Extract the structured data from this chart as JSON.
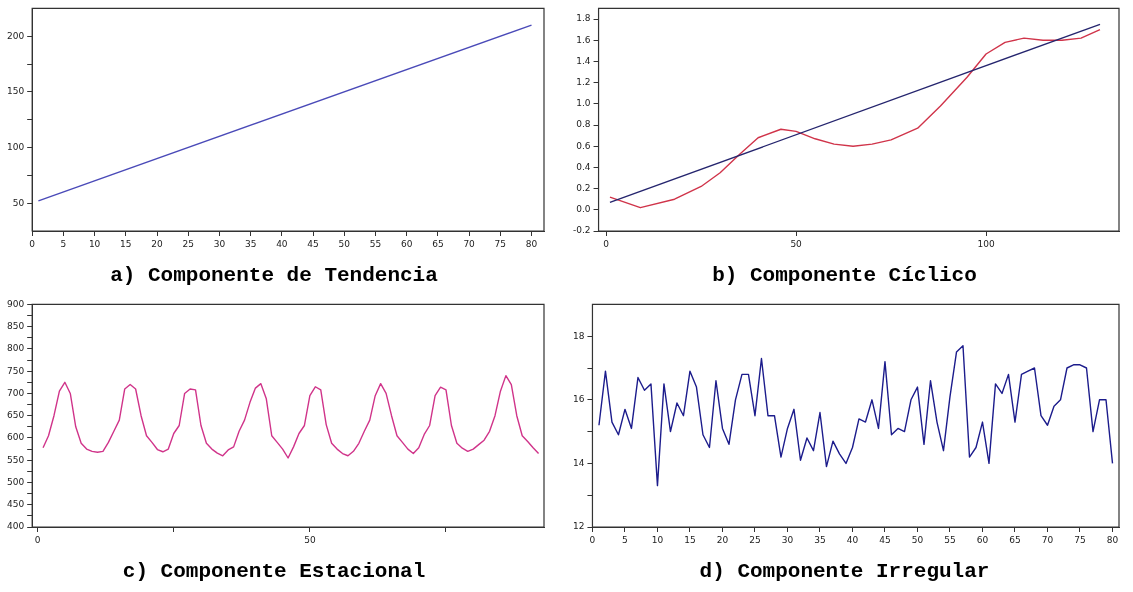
{
  "chart_data": [
    {
      "type": "line",
      "title": "a) Componente de Tendencia",
      "x": [
        1,
        80
      ],
      "xlim": [
        0,
        82
      ],
      "ylim": [
        25,
        225
      ],
      "xticks": [
        0,
        5,
        10,
        15,
        20,
        25,
        30,
        35,
        40,
        45,
        50,
        55,
        60,
        65,
        70,
        75,
        80
      ],
      "yticks": [
        50,
        {
          "value": 75,
          "label": null
        },
        100,
        {
          "value": 125,
          "label": null
        },
        150,
        {
          "value": 175,
          "label": null
        },
        200
      ],
      "series": [
        {
          "color": "#4a4ab8",
          "values": [
            52,
            210
          ]
        }
      ]
    },
    {
      "type": "line",
      "title": "b) Componente Cíclico",
      "xlim": [
        -2,
        135
      ],
      "ylim": [
        -0.2,
        1.9
      ],
      "xticks": [
        0,
        50,
        100
      ],
      "yticks": [
        {
          "value": -0.2,
          "label": "-0.2"
        },
        {
          "value": 0,
          "label": "0.0"
        },
        0.2,
        0.4,
        0.6,
        0.8,
        {
          "value": 1,
          "label": "1.0"
        },
        1.2,
        1.4,
        1.6,
        1.8
      ],
      "series": [
        {
          "color": "#25256e",
          "x": [
            1,
            130
          ],
          "values": [
            0.07,
            1.75
          ]
        },
        {
          "color": "#d0344a",
          "x": [
            1,
            9,
            18,
            25,
            30,
            35,
            40,
            46,
            50,
            55,
            60,
            65,
            70,
            75,
            82,
            88,
            95,
            100,
            105,
            110,
            115,
            120,
            125,
            130
          ],
          "values": [
            0.12,
            0.02,
            0.1,
            0.22,
            0.35,
            0.52,
            0.68,
            0.76,
            0.74,
            0.67,
            0.62,
            0.6,
            0.62,
            0.66,
            0.77,
            0.98,
            1.25,
            1.47,
            1.58,
            1.62,
            1.6,
            1.6,
            1.62,
            1.7
          ]
        }
      ]
    },
    {
      "type": "line",
      "title": "c) Componente Estacional",
      "xlim": [
        -1,
        93
      ],
      "ylim": [
        400,
        900
      ],
      "x": [
        1,
        2,
        3,
        4,
        5,
        6,
        7,
        8,
        9,
        10,
        11,
        12,
        13,
        14,
        15,
        16,
        17,
        18,
        19,
        20,
        21,
        22,
        23,
        24,
        25,
        26,
        27,
        28,
        29,
        30,
        31,
        32,
        33,
        34,
        35,
        36,
        37,
        38,
        39,
        40,
        41,
        42,
        43,
        44,
        45,
        46,
        47,
        48,
        49,
        50,
        51,
        52,
        53,
        54,
        55,
        56,
        57,
        58,
        59,
        60,
        61,
        62,
        63,
        64,
        65,
        66,
        67,
        68,
        69,
        70,
        71,
        72,
        73,
        74,
        75,
        76,
        77,
        78,
        79,
        80,
        81,
        82,
        83,
        84,
        85,
        86,
        87,
        88,
        89,
        90,
        91,
        92
      ],
      "xticks": [
        0,
        {
          "value": 25,
          "label": null
        },
        50,
        {
          "value": 75,
          "label": null
        }
      ],
      "yticks": [
        400,
        {
          "value": 425,
          "label": null
        },
        450,
        {
          "value": 475,
          "label": null
        },
        500,
        {
          "value": 525,
          "label": null
        },
        550,
        {
          "value": 575,
          "label": null
        },
        600,
        {
          "value": 625,
          "label": null
        },
        650,
        {
          "value": 675,
          "label": null
        },
        700,
        {
          "value": 725,
          "label": null
        },
        750,
        {
          "value": 775,
          "label": null
        },
        800,
        {
          "value": 825,
          "label": null
        },
        850,
        {
          "value": 875,
          "label": null
        },
        900
      ],
      "series": [
        {
          "color": "#d0348a",
          "values": [
            578,
            605,
            650,
            705,
            725,
            700,
            625,
            588,
            575,
            570,
            568,
            570,
            590,
            615,
            640,
            710,
            720,
            710,
            650,
            605,
            590,
            574,
            569,
            575,
            610,
            628,
            700,
            710,
            708,
            628,
            588,
            575,
            566,
            560,
            573,
            580,
            615,
            640,
            680,
            712,
            722,
            688,
            605,
            590,
            575,
            555,
            580,
            610,
            628,
            695,
            715,
            708,
            630,
            588,
            575,
            565,
            560,
            570,
            588,
            615,
            640,
            695,
            722,
            700,
            650,
            605,
            590,
            575,
            565,
            578,
            608,
            628,
            695,
            714,
            708,
            628,
            588,
            577,
            570,
            575,
            585,
            595,
            615,
            650,
            705,
            740,
            720,
            650,
            605,
            592,
            578,
            565
          ]
        }
      ]
    },
    {
      "type": "line",
      "title": "d) Componente Irregular",
      "xlim": [
        0,
        81
      ],
      "ylim": [
        12,
        19
      ],
      "x": [
        1,
        2,
        3,
        4,
        5,
        6,
        7,
        8,
        9,
        10,
        11,
        12,
        13,
        14,
        15,
        16,
        17,
        18,
        19,
        20,
        21,
        22,
        23,
        24,
        25,
        26,
        27,
        28,
        29,
        30,
        31,
        32,
        33,
        34,
        35,
        36,
        37,
        38,
        39,
        40,
        41,
        42,
        43,
        44,
        45,
        46,
        47,
        48,
        49,
        50,
        51,
        52,
        53,
        54,
        55,
        56,
        57,
        58,
        59,
        60,
        61,
        62,
        63,
        64,
        65,
        66,
        67,
        68,
        69,
        70,
        71,
        72,
        73,
        74,
        75,
        76,
        77,
        78,
        79,
        80
      ],
      "xticks": [
        0,
        5,
        10,
        15,
        20,
        25,
        30,
        35,
        40,
        45,
        50,
        55,
        60,
        65,
        70,
        75,
        80
      ],
      "yticks": [
        12,
        {
          "value": 13,
          "label": null
        },
        14,
        {
          "value": 15,
          "label": null
        },
        16,
        {
          "value": 17,
          "label": null
        },
        18
      ],
      "series": [
        {
          "color": "#1c1c8c",
          "values": [
            15.2,
            16.9,
            15.3,
            14.9,
            15.7,
            15.1,
            16.7,
            16.3,
            16.5,
            13.3,
            16.5,
            15.0,
            15.9,
            15.5,
            16.9,
            16.4,
            14.9,
            14.5,
            16.6,
            15.1,
            14.6,
            16.0,
            16.8,
            16.8,
            15.5,
            17.3,
            15.5,
            15.5,
            14.2,
            15.1,
            15.7,
            14.1,
            14.8,
            14.4,
            15.6,
            13.9,
            14.7,
            14.3,
            14.0,
            14.5,
            15.4,
            15.3,
            16.0,
            15.1,
            17.2,
            14.9,
            15.1,
            15.0,
            16.0,
            16.4,
            14.6,
            16.6,
            15.3,
            14.4,
            16.1,
            17.5,
            17.7,
            14.2,
            14.5,
            15.3,
            14.0,
            16.5,
            16.2,
            16.8,
            15.3,
            16.8,
            16.9,
            17.0,
            15.5,
            15.2,
            15.8,
            16.0,
            17.0,
            17.1,
            17.1,
            17.0,
            15.0,
            16.0,
            16.0,
            14.0
          ]
        }
      ]
    }
  ]
}
